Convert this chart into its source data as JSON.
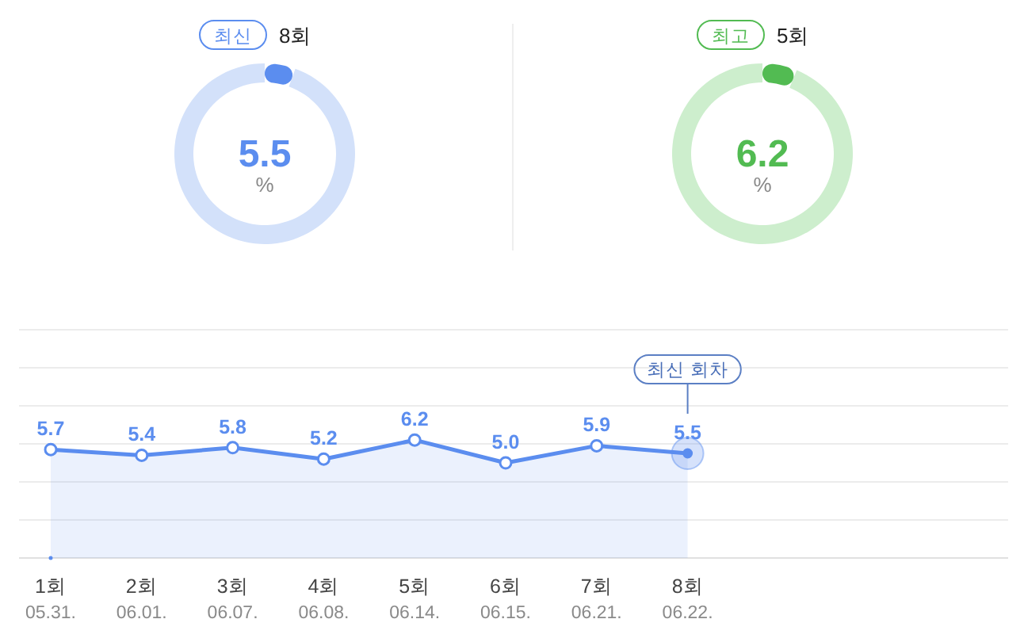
{
  "chart_data": [
    {
      "type": "donut",
      "title": "최신",
      "subtitle": "8회",
      "categories": [
        null,
        null
      ],
      "values": [
        5.5,
        94.5
      ],
      "colors": [
        "#5b8def",
        "#d3e1fa"
      ],
      "annotations": [
        "5.5",
        "%"
      ]
    },
    {
      "type": "donut",
      "title": "최고",
      "subtitle": "5회",
      "categories": [
        null,
        null
      ],
      "values": [
        6.2,
        93.8
      ],
      "colors": [
        "#52bb52",
        "#cdeecd"
      ],
      "annotations": [
        "6.2",
        "%"
      ]
    },
    {
      "type": "area",
      "categories": [
        "1회 05.31.",
        "2회 06.01.",
        "3회 06.07.",
        "4회 06.08.",
        "5회 06.14.",
        "6회 06.15.",
        "7회 06.21.",
        "8회 06.22."
      ],
      "values": [
        5.7,
        5.4,
        5.8,
        5.2,
        6.2,
        5.0,
        5.9,
        5.5
      ],
      "value_labels": [
        "5.7",
        "5.4",
        "5.8",
        "5.2",
        "6.2",
        "5.0",
        "5.9",
        "5.5"
      ],
      "color": "#5b8def",
      "marker": "circle",
      "grid": "y",
      "ylim": [
        0,
        12
      ],
      "yticks": [
        {
          "value": 0,
          "label": null
        },
        {
          "value": 2,
          "label": null
        },
        {
          "value": 4,
          "label": null
        },
        {
          "value": 6,
          "label": null
        },
        {
          "value": 8,
          "label": null
        },
        {
          "value": 10,
          "label": null
        },
        {
          "value": 12,
          "label": null
        }
      ],
      "tick_labels": "x",
      "annotations": [
        {
          "text": "최신 회차",
          "x": "8회 06.22."
        }
      ]
    }
  ]
}
